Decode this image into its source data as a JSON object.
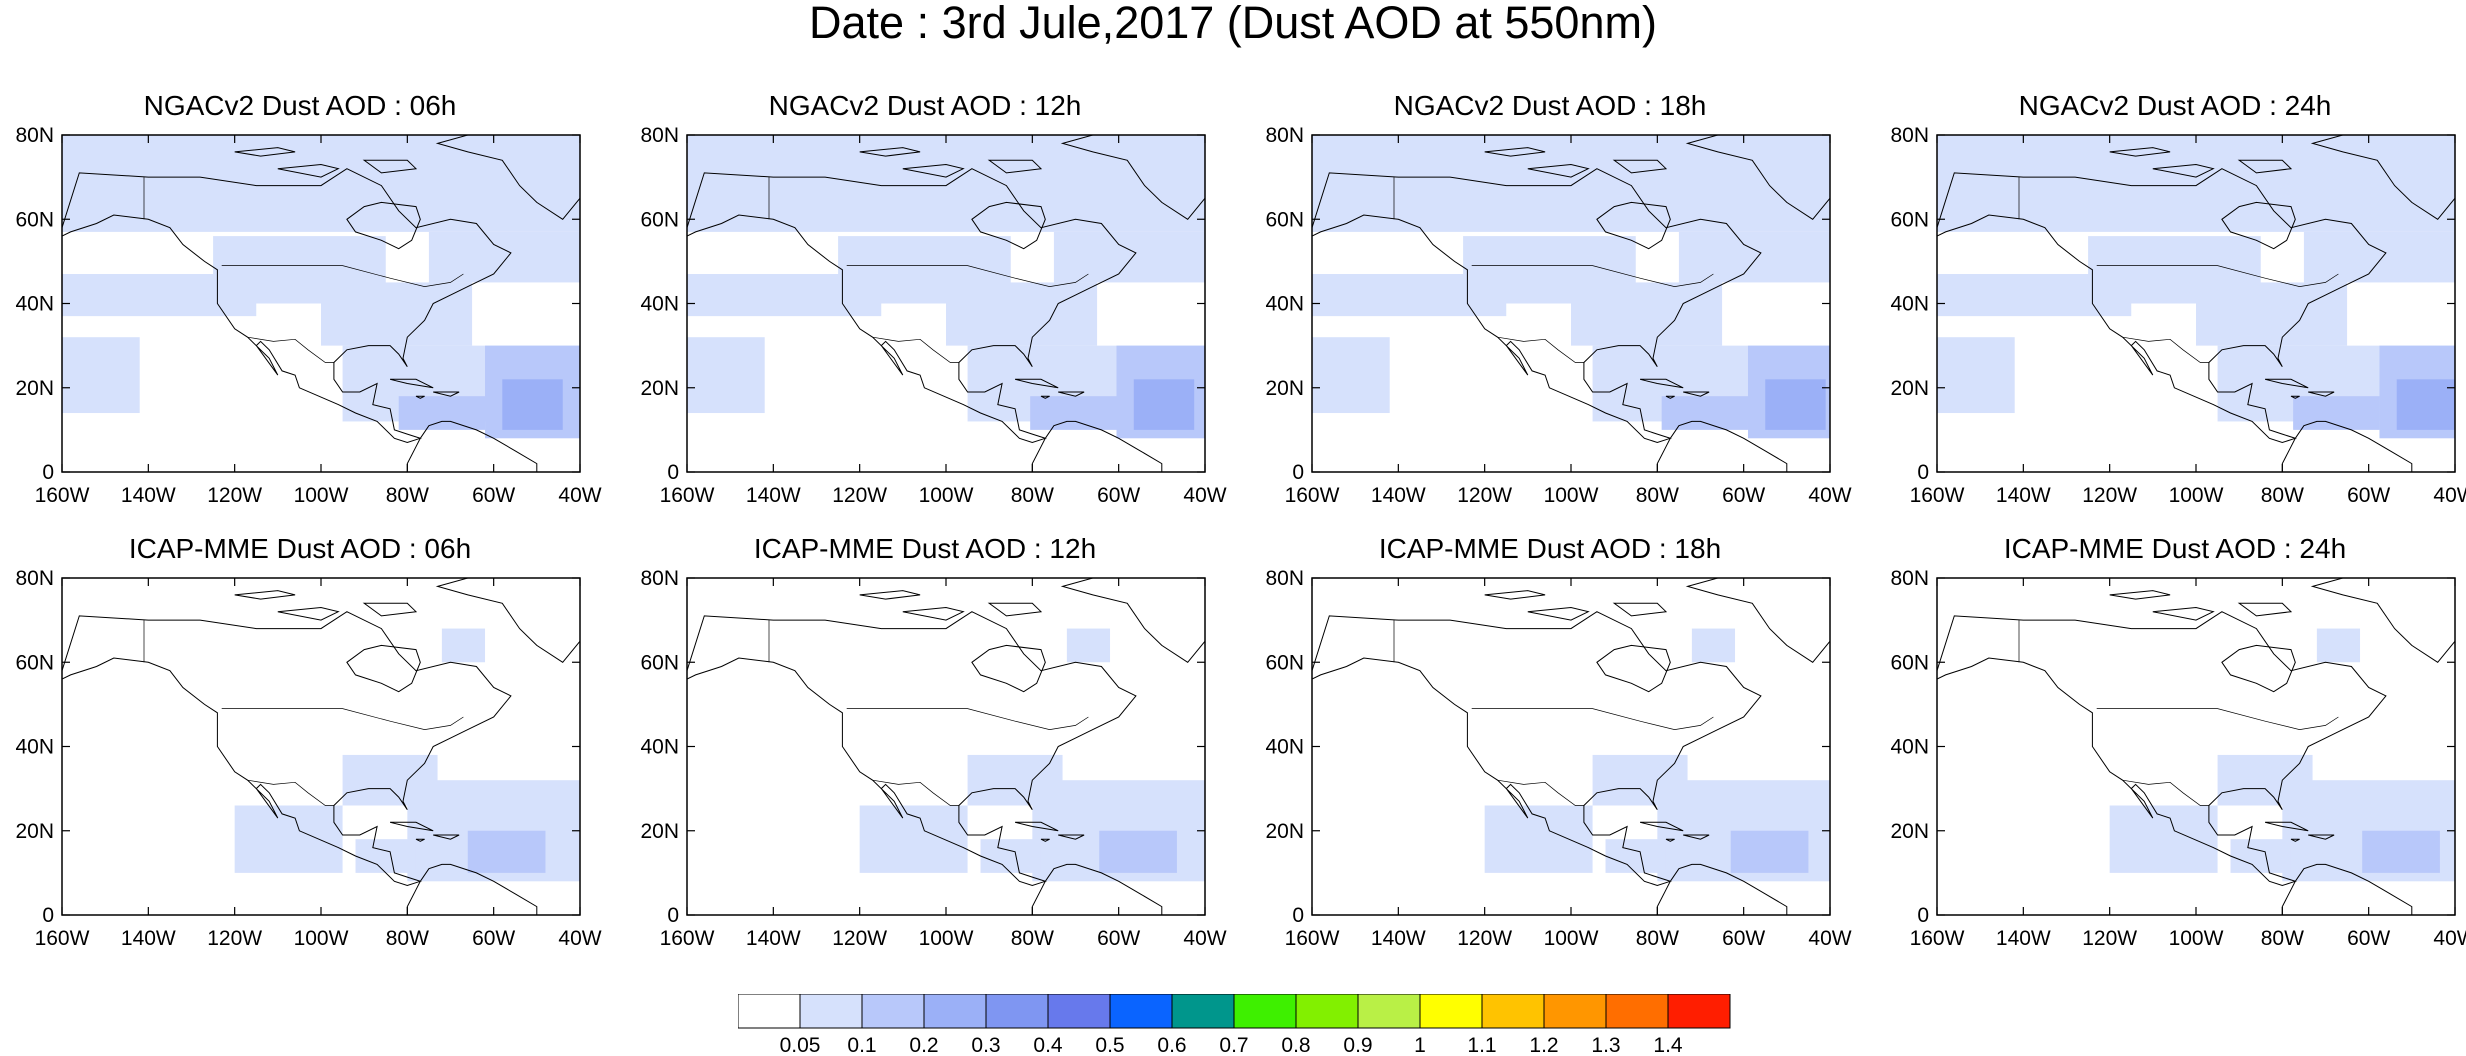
{
  "title": "Date : 3rd Jule,2017 (Dust AOD at 550nm)",
  "map_extent": {
    "lon": [
      -160,
      -40
    ],
    "lat": [
      0,
      80
    ]
  },
  "lon_ticks": [
    {
      "value": -160,
      "label": "160W"
    },
    {
      "value": -140,
      "label": "140W"
    },
    {
      "value": -120,
      "label": "120W"
    },
    {
      "value": -100,
      "label": "100W"
    },
    {
      "value": -80,
      "label": "80W"
    },
    {
      "value": -60,
      "label": "60W"
    },
    {
      "value": -40,
      "label": "40W"
    }
  ],
  "lat_ticks": [
    {
      "value": 0,
      "label": "0"
    },
    {
      "value": 20,
      "label": "20N"
    },
    {
      "value": 40,
      "label": "40N"
    },
    {
      "value": 60,
      "label": "60N"
    },
    {
      "value": 80,
      "label": "80N"
    }
  ],
  "panels": [
    {
      "title": "NGACv2 Dust AOD : 06h",
      "model": "NGACv2",
      "hour": "06h"
    },
    {
      "title": "NGACv2 Dust AOD : 12h",
      "model": "NGACv2",
      "hour": "12h"
    },
    {
      "title": "NGACv2 Dust AOD : 18h",
      "model": "NGACv2",
      "hour": "18h"
    },
    {
      "title": "NGACv2 Dust AOD : 24h",
      "model": "NGACv2",
      "hour": "24h"
    },
    {
      "title": "ICAP-MME Dust AOD : 06h",
      "model": "ICAP-MME",
      "hour": "06h"
    },
    {
      "title": "ICAP-MME Dust AOD : 12h",
      "model": "ICAP-MME",
      "hour": "12h"
    },
    {
      "title": "ICAP-MME Dust AOD : 18h",
      "model": "ICAP-MME",
      "hour": "18h"
    },
    {
      "title": "ICAP-MME Dust AOD : 24h",
      "model": "ICAP-MME",
      "hour": "24h"
    }
  ],
  "colorbar": {
    "labels": [
      "0.05",
      "0.1",
      "0.2",
      "0.3",
      "0.4",
      "0.5",
      "0.6",
      "0.7",
      "0.8",
      "0.9",
      "1",
      "1.1",
      "1.2",
      "1.3",
      "1.4"
    ],
    "colors": [
      "#ffffff",
      "#d6e1fc",
      "#b8c8fa",
      "#9bb0f7",
      "#7f96f2",
      "#6779ec",
      "#0a64ff",
      "#00968c",
      "#3ef000",
      "#82f000",
      "#b9f046",
      "#ffff00",
      "#ffc300",
      "#ff9600",
      "#ff6e00",
      "#ff1e00"
    ]
  },
  "regions": {
    "ngac": [
      {
        "level": 1,
        "lon": -160,
        "lat": 57,
        "w": 120,
        "h": 23
      },
      {
        "level": 1,
        "lon": -160,
        "lat": 37,
        "w": 45,
        "h": 10
      },
      {
        "level": 1,
        "lon": -125,
        "lat": 40,
        "w": 40,
        "h": 16
      },
      {
        "level": 1,
        "lon": -100,
        "lat": 30,
        "w": 35,
        "h": 15
      },
      {
        "level": 1,
        "lon": -95,
        "lat": 12,
        "w": 55,
        "h": 18
      },
      {
        "level": 1,
        "lon": -75,
        "lat": 45,
        "w": 35,
        "h": 12
      },
      {
        "level": 1,
        "lon": -160,
        "lat": 14,
        "w": 18,
        "h": 18
      },
      {
        "level": 2,
        "lon": -62,
        "lat": 8,
        "w": 22,
        "h": 22
      },
      {
        "level": 2,
        "lon": -82,
        "lat": 10,
        "w": 20,
        "h": 8
      },
      {
        "level": 3,
        "lon": -58,
        "lat": 10,
        "w": 14,
        "h": 12
      }
    ],
    "icap": [
      {
        "level": 1,
        "lon": -120,
        "lat": 10,
        "w": 25,
        "h": 16
      },
      {
        "level": 1,
        "lon": -95,
        "lat": 26,
        "w": 22,
        "h": 12
      },
      {
        "level": 1,
        "lon": -80,
        "lat": 8,
        "w": 40,
        "h": 24
      },
      {
        "level": 1,
        "lon": -92,
        "lat": 10,
        "w": 14,
        "h": 8
      },
      {
        "level": 1,
        "lon": -72,
        "lat": 60,
        "w": 10,
        "h": 8
      },
      {
        "level": 2,
        "lon": -66,
        "lat": 10,
        "w": 18,
        "h": 10
      }
    ]
  }
}
